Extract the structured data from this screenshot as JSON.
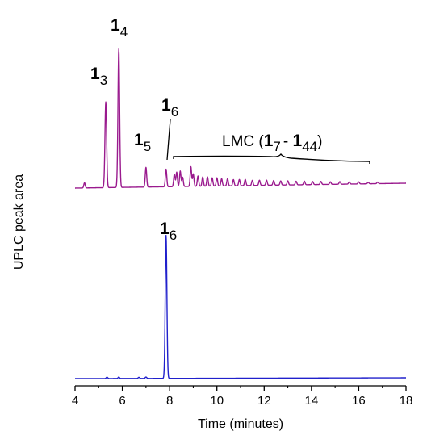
{
  "chart_data": {
    "type": "line",
    "xlabel": "Time (minutes)",
    "ylabel": "UPLC peak area",
    "xlim": [
      4,
      18
    ],
    "xticks": [
      "4",
      "6",
      "8",
      "10",
      "12",
      "14",
      "16",
      "18"
    ],
    "colors": {
      "upper": "#9a1a8e",
      "lower": "#2020cc"
    },
    "series": [
      {
        "peaks": [
          {
            "x": 4.4,
            "h": 0.05
          },
          {
            "x": 5.3,
            "h": 0.83
          },
          {
            "x": 5.85,
            "h": 1.34
          },
          {
            "x": 7.0,
            "h": 0.19
          },
          {
            "x": 7.85,
            "h": 0.17
          },
          {
            "x": 8.2,
            "h": 0.12
          },
          {
            "x": 8.3,
            "h": 0.14
          },
          {
            "x": 8.45,
            "h": 0.15
          },
          {
            "x": 8.55,
            "h": 0.09
          },
          {
            "x": 8.9,
            "h": 0.19
          },
          {
            "x": 9.0,
            "h": 0.12
          },
          {
            "x": 9.2,
            "h": 0.1
          },
          {
            "x": 9.4,
            "h": 0.09
          },
          {
            "x": 9.6,
            "h": 0.09
          },
          {
            "x": 9.8,
            "h": 0.08
          },
          {
            "x": 10.0,
            "h": 0.08
          },
          {
            "x": 10.2,
            "h": 0.07
          },
          {
            "x": 10.45,
            "h": 0.07
          },
          {
            "x": 10.7,
            "h": 0.06
          },
          {
            "x": 10.95,
            "h": 0.06
          },
          {
            "x": 11.2,
            "h": 0.06
          },
          {
            "x": 11.5,
            "h": 0.05
          },
          {
            "x": 11.8,
            "h": 0.05
          },
          {
            "x": 12.1,
            "h": 0.05
          },
          {
            "x": 12.4,
            "h": 0.045
          },
          {
            "x": 12.7,
            "h": 0.04
          },
          {
            "x": 13.0,
            "h": 0.04
          },
          {
            "x": 13.35,
            "h": 0.035
          },
          {
            "x": 13.7,
            "h": 0.035
          },
          {
            "x": 14.05,
            "h": 0.03
          },
          {
            "x": 14.4,
            "h": 0.03
          },
          {
            "x": 14.8,
            "h": 0.025
          },
          {
            "x": 15.2,
            "h": 0.025
          },
          {
            "x": 15.6,
            "h": 0.02
          },
          {
            "x": 16.0,
            "h": 0.02
          },
          {
            "x": 16.4,
            "h": 0.015
          },
          {
            "x": 16.8,
            "h": 0.015
          }
        ]
      },
      {
        "peaks": [
          {
            "x": 5.35,
            "h": 0.01
          },
          {
            "x": 5.85,
            "h": 0.01
          },
          {
            "x": 6.7,
            "h": 0.008
          },
          {
            "x": 7.0,
            "h": 0.01
          },
          {
            "x": 7.85,
            "h": 1.0
          }
        ]
      }
    ],
    "annotations": {
      "p3": {
        "main": "1",
        "sub": "3"
      },
      "p4": {
        "main": "1",
        "sub": "4"
      },
      "p5": {
        "main": "1",
        "sub": "5"
      },
      "p6_upper": {
        "main": "1",
        "sub": "6"
      },
      "p6_lower": {
        "main": "1",
        "sub": "6"
      },
      "lmc": {
        "prefix": "LMC (",
        "a_main": "1",
        "a_sub": "7",
        "dash": "- ",
        "b_main": "1",
        "b_sub": "44",
        "suffix": ")"
      }
    }
  }
}
